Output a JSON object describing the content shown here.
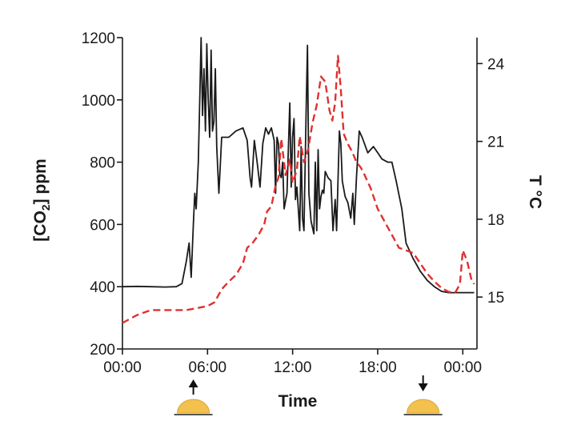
{
  "chart_data": {
    "type": "line",
    "xlabel": "Time",
    "ylabel_left": "[CO2] ppm",
    "ylabel_left_main": "[CO",
    "ylabel_left_sub": "2",
    "ylabel_left_tail": "] ppm",
    "ylabel_right": "T °C",
    "x_ticks": [
      0,
      6,
      12,
      18,
      24
    ],
    "x_tick_labels": [
      "00:00",
      "06:00",
      "12:00",
      "18:00",
      "00:00"
    ],
    "xlim": [
      0,
      25
    ],
    "ylim_left": [
      200,
      1200
    ],
    "y_left_ticks": [
      200,
      400,
      600,
      800,
      1000,
      1200
    ],
    "ylim_right": [
      13,
      25
    ],
    "y_right_ticks": [
      15,
      18,
      21,
      24
    ],
    "grid": false,
    "legend": "none",
    "series": [
      {
        "axis": "left",
        "color": "#1a1a1a",
        "style": "solid",
        "points": [
          [
            0.0,
            400
          ],
          [
            1.0,
            401
          ],
          [
            2.0,
            400
          ],
          [
            3.0,
            399
          ],
          [
            3.8,
            400
          ],
          [
            4.2,
            410
          ],
          [
            4.5,
            480
          ],
          [
            4.7,
            540
          ],
          [
            4.85,
            430
          ],
          [
            5.0,
            600
          ],
          [
            5.1,
            700
          ],
          [
            5.2,
            650
          ],
          [
            5.35,
            800
          ],
          [
            5.45,
            1000
          ],
          [
            5.55,
            1200
          ],
          [
            5.65,
            950
          ],
          [
            5.75,
            1100
          ],
          [
            5.85,
            900
          ],
          [
            5.95,
            1180
          ],
          [
            6.05,
            1000
          ],
          [
            6.15,
            880
          ],
          [
            6.25,
            1160
          ],
          [
            6.35,
            900
          ],
          [
            6.45,
            930
          ],
          [
            6.55,
            1100
          ],
          [
            6.65,
            850
          ],
          [
            6.8,
            700
          ],
          [
            7.0,
            880
          ],
          [
            7.5,
            880
          ],
          [
            8.0,
            900
          ],
          [
            8.5,
            910
          ],
          [
            8.8,
            870
          ],
          [
            9.0,
            750
          ],
          [
            9.1,
            720
          ],
          [
            9.3,
            870
          ],
          [
            9.5,
            800
          ],
          [
            9.7,
            720
          ],
          [
            9.9,
            860
          ],
          [
            10.1,
            910
          ],
          [
            10.3,
            890
          ],
          [
            10.5,
            910
          ],
          [
            10.7,
            870
          ],
          [
            10.8,
            700
          ],
          [
            10.9,
            880
          ],
          [
            11.0,
            860
          ],
          [
            11.1,
            760
          ],
          [
            11.2,
            750
          ],
          [
            11.3,
            800
          ],
          [
            11.4,
            650
          ],
          [
            11.6,
            700
          ],
          [
            11.8,
            990
          ],
          [
            11.9,
            720
          ],
          [
            12.0,
            880
          ],
          [
            12.1,
            940
          ],
          [
            12.2,
            680
          ],
          [
            12.3,
            720
          ],
          [
            12.5,
            580
          ],
          [
            12.6,
            850
          ],
          [
            12.7,
            620
          ],
          [
            12.8,
            580
          ],
          [
            12.95,
            960
          ],
          [
            13.05,
            1175
          ],
          [
            13.15,
            700
          ],
          [
            13.3,
            610
          ],
          [
            13.5,
            570
          ],
          [
            13.6,
            800
          ],
          [
            13.7,
            580
          ],
          [
            13.8,
            840
          ],
          [
            13.9,
            650
          ],
          [
            14.0,
            690
          ],
          [
            14.1,
            710
          ],
          [
            14.2,
            700
          ],
          [
            14.3,
            770
          ],
          [
            14.5,
            750
          ],
          [
            14.7,
            740
          ],
          [
            14.85,
            580
          ],
          [
            15.0,
            680
          ],
          [
            15.1,
            580
          ],
          [
            15.3,
            900
          ],
          [
            15.4,
            860
          ],
          [
            15.5,
            740
          ],
          [
            15.7,
            690
          ],
          [
            15.9,
            670
          ],
          [
            16.1,
            620
          ],
          [
            16.25,
            700
          ],
          [
            16.35,
            600
          ],
          [
            16.5,
            750
          ],
          [
            16.7,
            900
          ],
          [
            16.9,
            880
          ],
          [
            17.3,
            830
          ],
          [
            17.7,
            850
          ],
          [
            18.0,
            830
          ],
          [
            18.3,
            810
          ],
          [
            18.7,
            800
          ],
          [
            19.0,
            800
          ],
          [
            19.3,
            740
          ],
          [
            19.7,
            650
          ],
          [
            20.0,
            540
          ],
          [
            20.5,
            490
          ],
          [
            21.0,
            450
          ],
          [
            21.5,
            420
          ],
          [
            22.0,
            400
          ],
          [
            22.5,
            385
          ],
          [
            23.0,
            381
          ],
          [
            24.0,
            381
          ],
          [
            24.8,
            381
          ]
        ]
      },
      {
        "axis": "right",
        "color": "#e03030",
        "style": "dashed",
        "points": [
          [
            0.0,
            14.0
          ],
          [
            0.5,
            14.15
          ],
          [
            1.0,
            14.3
          ],
          [
            1.5,
            14.4
          ],
          [
            2.0,
            14.5
          ],
          [
            3.0,
            14.5
          ],
          [
            4.0,
            14.5
          ],
          [
            4.5,
            14.5
          ],
          [
            5.0,
            14.55
          ],
          [
            5.5,
            14.6
          ],
          [
            6.0,
            14.65
          ],
          [
            6.5,
            14.8
          ],
          [
            7.0,
            15.3
          ],
          [
            7.5,
            15.6
          ],
          [
            8.0,
            15.85
          ],
          [
            8.5,
            16.3
          ],
          [
            8.8,
            16.9
          ],
          [
            9.2,
            17.1
          ],
          [
            9.6,
            17.4
          ],
          [
            10.0,
            17.8
          ],
          [
            10.2,
            18.3
          ],
          [
            10.5,
            18.5
          ],
          [
            10.8,
            19.3
          ],
          [
            11.0,
            19.6
          ],
          [
            11.2,
            21.1
          ],
          [
            11.5,
            19.7
          ],
          [
            11.8,
            20.3
          ],
          [
            12.0,
            19.4
          ],
          [
            12.3,
            19.9
          ],
          [
            12.5,
            21.2
          ],
          [
            12.8,
            20.2
          ],
          [
            13.1,
            20.7
          ],
          [
            13.4,
            21.7
          ],
          [
            13.7,
            22.4
          ],
          [
            14.0,
            23.5
          ],
          [
            14.3,
            23.3
          ],
          [
            14.6,
            22.2
          ],
          [
            14.8,
            21.8
          ],
          [
            15.0,
            22.5
          ],
          [
            15.2,
            24.3
          ],
          [
            15.4,
            23.0
          ],
          [
            15.6,
            21.3
          ],
          [
            15.9,
            20.9
          ],
          [
            16.2,
            20.6
          ],
          [
            16.5,
            20.2
          ],
          [
            16.8,
            20.0
          ],
          [
            17.0,
            19.8
          ],
          [
            17.5,
            19.2
          ],
          [
            18.0,
            18.4
          ],
          [
            18.5,
            17.9
          ],
          [
            19.0,
            17.4
          ],
          [
            19.5,
            16.9
          ],
          [
            20.0,
            16.8
          ],
          [
            20.5,
            16.7
          ],
          [
            21.0,
            16.3
          ],
          [
            21.5,
            15.9
          ],
          [
            22.0,
            15.6
          ],
          [
            22.5,
            15.35
          ],
          [
            23.0,
            15.2
          ],
          [
            23.5,
            15.2
          ],
          [
            23.8,
            15.5
          ],
          [
            24.0,
            16.8
          ],
          [
            24.3,
            16.4
          ],
          [
            24.6,
            15.7
          ],
          [
            24.8,
            15.5
          ]
        ]
      }
    ],
    "markers": [
      {
        "x": 5.0,
        "direction": "up",
        "meaning": "sunrise"
      },
      {
        "x": 21.2,
        "direction": "down",
        "meaning": "sunset"
      }
    ]
  }
}
